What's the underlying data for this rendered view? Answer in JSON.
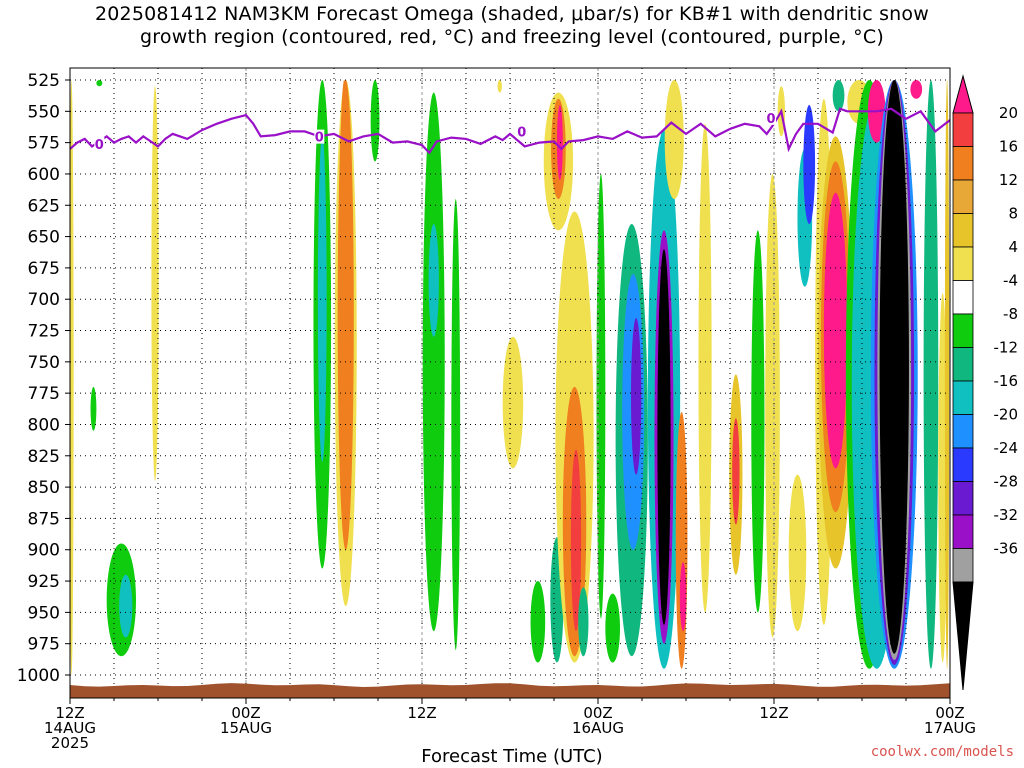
{
  "title_line1": "2025081412 NAM3KM Forecast Omega (shaded, μbar/s) for KB#1 with dendritic snow",
  "title_line2": "growth region (contoured, red, °C) and freezing level (contoured, purple, °C)",
  "credit": "coolwx.com/models",
  "chart_data": {
    "type": "heatmap",
    "title": "2025081412 NAM3KM Forecast Omega (shaded, μbar/s) for KB#1 with dendritic snow growth region (contoured, red, °C) and freezing level (contoured, purple, °C)",
    "xlabel": "Forecast Time (UTC)",
    "ylabel": "",
    "xlim_hours": [
      0,
      60
    ],
    "ylim_hpa": [
      1000,
      525
    ],
    "y_ticks": [
      525,
      550,
      575,
      600,
      625,
      650,
      675,
      700,
      725,
      750,
      775,
      800,
      825,
      850,
      875,
      900,
      925,
      950,
      975,
      1000
    ],
    "x_ticks": [
      {
        "hour": 0,
        "lines": [
          "12Z",
          "14AUG",
          "2025"
        ]
      },
      {
        "hour": 12,
        "lines": [
          "00Z",
          "15AUG"
        ]
      },
      {
        "hour": 24,
        "lines": [
          "12Z"
        ]
      },
      {
        "hour": 36,
        "lines": [
          "00Z",
          "16AUG"
        ]
      },
      {
        "hour": 48,
        "lines": [
          "12Z"
        ]
      },
      {
        "hour": 60,
        "lines": [
          "00Z",
          "17AUG"
        ]
      }
    ],
    "colorbar": {
      "labels": [
        "20",
        "16",
        "12",
        "8",
        "4",
        "-4",
        "-8",
        "-12",
        "-16",
        "-20",
        "-24",
        "-28",
        "-32",
        "-36"
      ],
      "colors": [
        "#ff1a8c",
        "#f23e3e",
        "#f07f1f",
        "#e8a838",
        "#e6c42a",
        "#f0e050",
        "#ffffff",
        "#0fcc0f",
        "#10b880",
        "#10c0c0",
        "#1e90ff",
        "#2a3aff",
        "#6a1ad0",
        "#9a10c8",
        "#a0a0a0",
        "#000000"
      ]
    },
    "omega_features": [
      {
        "t": 0.1,
        "p_top": 525,
        "p_bot": 1000,
        "hw": 0.15,
        "v": 6
      },
      {
        "t": 1.6,
        "p_top": 770,
        "p_bot": 805,
        "hw": 0.2,
        "v": -6
      },
      {
        "t": 3.5,
        "p_top": 895,
        "p_bot": 985,
        "hw": 1.0,
        "v": -7
      },
      {
        "t": 3.8,
        "p_top": 920,
        "p_bot": 970,
        "hw": 0.45,
        "v": -12
      },
      {
        "t": 2.0,
        "p_top": 525,
        "p_bot": 530,
        "hw": 0.2,
        "v": -6
      },
      {
        "t": 5.8,
        "p_top": 530,
        "p_bot": 845,
        "hw": 0.25,
        "v": 6
      },
      {
        "t": 17.2,
        "p_top": 525,
        "p_bot": 915,
        "hw": 0.6,
        "v": -6
      },
      {
        "t": 17.2,
        "p_top": 570,
        "p_bot": 830,
        "hw": 0.3,
        "v": -12
      },
      {
        "t": 18.8,
        "p_top": 525,
        "p_bot": 945,
        "hw": 0.75,
        "v": 6
      },
      {
        "t": 18.8,
        "p_top": 525,
        "p_bot": 900,
        "hw": 0.55,
        "v": 12
      },
      {
        "t": 18.7,
        "p_top": 525,
        "p_bot": 825,
        "hw": 0.35,
        "v": 14
      },
      {
        "t": 20.8,
        "p_top": 525,
        "p_bot": 590,
        "hw": 0.3,
        "v": -6
      },
      {
        "t": 24.8,
        "p_top": 535,
        "p_bot": 965,
        "hw": 0.75,
        "v": -6
      },
      {
        "t": 24.8,
        "p_top": 640,
        "p_bot": 730,
        "hw": 0.35,
        "v": -12
      },
      {
        "t": 26.3,
        "p_top": 620,
        "p_bot": 980,
        "hw": 0.3,
        "v": -6
      },
      {
        "t": 30.2,
        "p_top": 730,
        "p_bot": 835,
        "hw": 0.7,
        "v": 6
      },
      {
        "t": 29.3,
        "p_top": 525,
        "p_bot": 535,
        "hw": 0.15,
        "v": 6
      },
      {
        "t": 31.9,
        "p_top": 925,
        "p_bot": 990,
        "hw": 0.5,
        "v": -7
      },
      {
        "t": 33.2,
        "p_top": 890,
        "p_bot": 990,
        "hw": 0.45,
        "v": -8
      },
      {
        "t": 33.3,
        "p_top": 535,
        "p_bot": 645,
        "hw": 1.0,
        "v": 6
      },
      {
        "t": 33.3,
        "p_top": 540,
        "p_bot": 620,
        "hw": 0.5,
        "v": 14
      },
      {
        "t": 33.4,
        "p_top": 545,
        "p_bot": 605,
        "hw": 0.2,
        "v": 20
      },
      {
        "t": 34.4,
        "p_top": 630,
        "p_bot": 990,
        "hw": 1.3,
        "v": 6
      },
      {
        "t": 34.4,
        "p_top": 770,
        "p_bot": 985,
        "hw": 0.8,
        "v": 12
      },
      {
        "t": 34.5,
        "p_top": 820,
        "p_bot": 965,
        "hw": 0.35,
        "v": 17
      },
      {
        "t": 35.0,
        "p_top": 930,
        "p_bot": 985,
        "hw": 0.35,
        "v": -8
      },
      {
        "t": 36.2,
        "p_top": 600,
        "p_bot": 955,
        "hw": 0.3,
        "v": -6
      },
      {
        "t": 37.0,
        "p_top": 935,
        "p_bot": 990,
        "hw": 0.5,
        "v": -7
      },
      {
        "t": 38.3,
        "p_top": 640,
        "p_bot": 985,
        "hw": 1.1,
        "v": -8
      },
      {
        "t": 38.4,
        "p_top": 680,
        "p_bot": 900,
        "hw": 0.75,
        "v": -18
      },
      {
        "t": 38.6,
        "p_top": 715,
        "p_bot": 840,
        "hw": 0.35,
        "v": -26
      },
      {
        "t": 40.5,
        "p_top": 565,
        "p_bot": 995,
        "hw": 1.1,
        "v": -12
      },
      {
        "t": 40.5,
        "p_top": 645,
        "p_bot": 975,
        "hw": 0.65,
        "v": -30
      },
      {
        "t": 40.5,
        "p_top": 660,
        "p_bot": 960,
        "hw": 0.45,
        "v": -40
      },
      {
        "t": 41.2,
        "p_top": 525,
        "p_bot": 620,
        "hw": 0.65,
        "v": 6
      },
      {
        "t": 41.7,
        "p_top": 790,
        "p_bot": 995,
        "hw": 0.4,
        "v": 12
      },
      {
        "t": 41.8,
        "p_top": 910,
        "p_bot": 965,
        "hw": 0.22,
        "v": 20
      },
      {
        "t": 43.3,
        "p_top": 560,
        "p_bot": 950,
        "hw": 0.45,
        "v": 6
      },
      {
        "t": 45.4,
        "p_top": 760,
        "p_bot": 920,
        "hw": 0.45,
        "v": 8
      },
      {
        "t": 45.4,
        "p_top": 795,
        "p_bot": 880,
        "hw": 0.25,
        "v": 18
      },
      {
        "t": 46.9,
        "p_top": 645,
        "p_bot": 950,
        "hw": 0.45,
        "v": -6
      },
      {
        "t": 47.9,
        "p_top": 600,
        "p_bot": 970,
        "hw": 0.5,
        "v": 6
      },
      {
        "t": 48.5,
        "p_top": 530,
        "p_bot": 570,
        "hw": 0.25,
        "v": 6
      },
      {
        "t": 49.6,
        "p_top": 840,
        "p_bot": 965,
        "hw": 0.6,
        "v": 6
      },
      {
        "t": 50.1,
        "p_top": 580,
        "p_bot": 690,
        "hw": 0.5,
        "v": -12
      },
      {
        "t": 50.4,
        "p_top": 545,
        "p_bot": 640,
        "hw": 0.4,
        "v": -22
      },
      {
        "t": 51.4,
        "p_top": 540,
        "p_bot": 960,
        "hw": 0.6,
        "v": 6
      },
      {
        "t": 52.2,
        "p_top": 570,
        "p_bot": 915,
        "hw": 1.2,
        "v": 8
      },
      {
        "t": 52.2,
        "p_top": 590,
        "p_bot": 870,
        "hw": 1.0,
        "v": 14
      },
      {
        "t": 52.2,
        "p_top": 615,
        "p_bot": 835,
        "hw": 0.8,
        "v": 20
      },
      {
        "t": 52.4,
        "p_top": 525,
        "p_bot": 550,
        "hw": 0.4,
        "v": -10
      },
      {
        "t": 53.8,
        "p_top": 525,
        "p_bot": 560,
        "hw": 0.8,
        "v": 6
      },
      {
        "t": 54.5,
        "p_top": 525,
        "p_bot": 995,
        "hw": 1.6,
        "v": -6
      },
      {
        "t": 55.0,
        "p_top": 540,
        "p_bot": 995,
        "hw": 1.7,
        "v": -12
      },
      {
        "t": 55.0,
        "p_top": 525,
        "p_bot": 575,
        "hw": 0.6,
        "v": 22
      },
      {
        "t": 56.2,
        "p_top": 525,
        "p_bot": 995,
        "hw": 1.6,
        "v": -16
      },
      {
        "t": 56.2,
        "p_top": 525,
        "p_bot": 992,
        "hw": 1.35,
        "v": -26
      },
      {
        "t": 56.2,
        "p_top": 525,
        "p_bot": 988,
        "hw": 1.15,
        "v": -32
      },
      {
        "t": 56.2,
        "p_top": 525,
        "p_bot": 983,
        "hw": 1.0,
        "v": -40
      },
      {
        "t": 57.7,
        "p_top": 525,
        "p_bot": 540,
        "hw": 0.4,
        "v": 20
      },
      {
        "t": 58.7,
        "p_top": 525,
        "p_bot": 995,
        "hw": 0.5,
        "v": -8
      },
      {
        "t": 59.5,
        "p_top": 695,
        "p_bot": 990,
        "hw": 0.3,
        "v": 6
      },
      {
        "t": 59.8,
        "p_top": 525,
        "p_bot": 995,
        "hw": 0.15,
        "v": 8
      }
    ],
    "freezing_level": {
      "name": "0",
      "t": [
        0,
        0.5,
        1,
        1.5,
        2,
        2.5,
        3,
        3.5,
        4,
        4.5,
        5,
        5.5,
        6,
        6.5,
        7,
        8,
        9,
        10,
        11,
        12,
        12.5,
        13,
        14,
        15,
        16,
        17,
        18,
        19,
        20,
        21,
        22,
        23,
        24,
        24.5,
        25,
        26,
        27,
        28,
        29,
        29.5,
        30,
        31,
        32,
        33,
        33.5,
        34,
        35,
        36,
        37,
        38,
        39,
        40,
        41,
        42,
        43,
        44,
        45,
        46,
        47,
        47.5,
        48,
        48.5,
        49,
        49.5,
        50,
        51,
        52,
        52.5,
        53,
        54,
        55,
        56,
        57,
        58,
        59,
        60
      ],
      "p": [
        580,
        575,
        572,
        578,
        574,
        570,
        575,
        572,
        570,
        575,
        570,
        574,
        578,
        572,
        568,
        572,
        565,
        560,
        556,
        553,
        560,
        570,
        569,
        566,
        566,
        570,
        568,
        574,
        570,
        568,
        575,
        574,
        577,
        583,
        574,
        571,
        572,
        576,
        570,
        573,
        568,
        578,
        575,
        574,
        580,
        574,
        573,
        570,
        572,
        566,
        571,
        570,
        559,
        568,
        560,
        570,
        564,
        560,
        562,
        568,
        560,
        550,
        580,
        568,
        560,
        560,
        567,
        548,
        550,
        550,
        550,
        548,
        556,
        550,
        566,
        557
      ],
      "labels": [
        {
          "t": 2.0,
          "p": 577
        },
        {
          "t": 17.0,
          "p": 571
        },
        {
          "t": 30.8,
          "p": 567
        },
        {
          "t": 47.8,
          "p": 556
        }
      ]
    }
  }
}
